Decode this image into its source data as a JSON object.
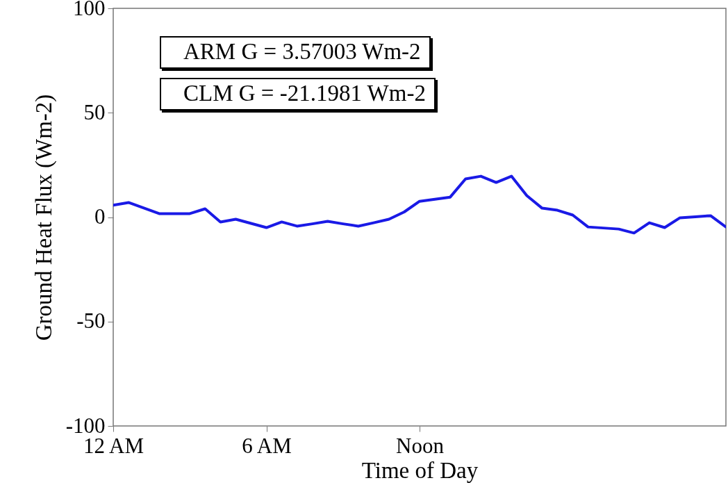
{
  "chart_data": {
    "type": "line",
    "xlabel": "Time of Day",
    "ylabel": "Ground Heat Flux (Wm-2)",
    "annotations": [
      "ARM G = 3.57003 Wm-2",
      "CLM G = -21.1981 Wm-2"
    ],
    "categories": [
      "12 AM",
      null,
      null,
      null,
      null,
      null,
      null,
      null,
      null,
      null,
      "6 AM",
      null,
      null,
      null,
      null,
      null,
      null,
      null,
      null,
      null,
      "Noon",
      null,
      null,
      null,
      null,
      null,
      null,
      null,
      null,
      null,
      null,
      null,
      null,
      null,
      null,
      null,
      null,
      null,
      null,
      null,
      null
    ],
    "series": [
      {
        "color": "#1a1ae6",
        "values": [
          5.7,
          7,
          4.4,
          1.7,
          1.7,
          1.7,
          4,
          -2.3,
          -1,
          -3,
          -5,
          -2.3,
          -4.3,
          -3.2,
          -2,
          -3.2,
          -4.3,
          -2.7,
          -1,
          2.5,
          7.6,
          8.6,
          9.6,
          18.3,
          19.6,
          16.6,
          19.6,
          10.3,
          4.3,
          3.3,
          1,
          -4.7,
          -5.2,
          -5.7,
          -7.6,
          -2.7,
          -5,
          -0.3,
          0.2,
          0.7,
          -4.7
        ]
      }
    ],
    "ylim": [
      -100,
      100
    ],
    "yticks": [
      100,
      50,
      0,
      -50,
      -100
    ],
    "grid": false,
    "marker": "none",
    "line_style": "solid"
  }
}
